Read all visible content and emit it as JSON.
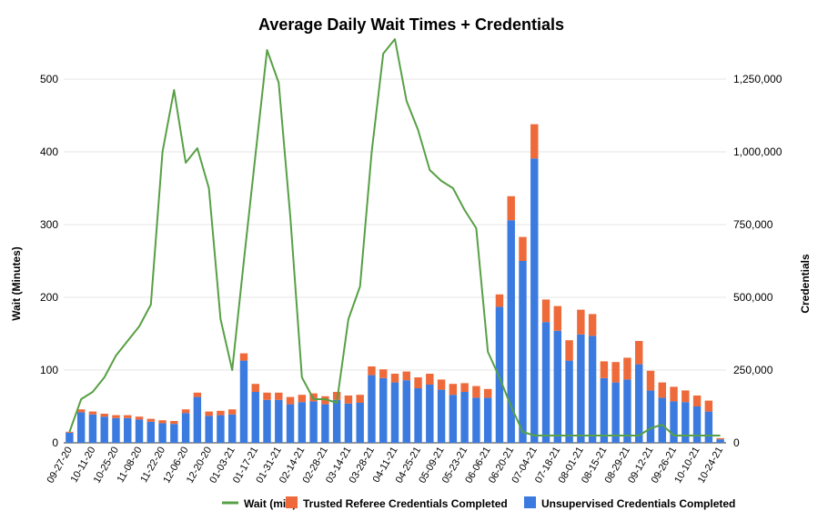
{
  "chart_data": {
    "type": "bar",
    "title": "Average Daily Wait Times + Credentials",
    "ylabel": "Wait (Minutes)",
    "y2label": "Credentials",
    "ylim": [
      0,
      500
    ],
    "y2lim": [
      0,
      1250000
    ],
    "yticks": [
      "0",
      "100",
      "200",
      "300",
      "400",
      "500"
    ],
    "y2ticks": [
      "0",
      "250,000",
      "500,000",
      "750,000",
      "1,000,000",
      "1,250,000"
    ],
    "legend_position": "bottom",
    "colors": {
      "wait": "#57a045",
      "trusted": "#ef6a3a",
      "unsupervised": "#3b7be0"
    },
    "x_tick_labels": [
      "09-27-20",
      "10-11-20",
      "10-25-20",
      "11-08-20",
      "11-22-20",
      "12-06-20",
      "12-20-20",
      "01-03-21",
      "01-17-21",
      "01-31-21",
      "02-14-21",
      "02-28-21",
      "03-14-21",
      "03-28-21",
      "04-11-21",
      "04-25-21",
      "05-09-21",
      "05-23-21",
      "06-06-21",
      "06-20-21",
      "07-04-21",
      "07-18-21",
      "08-01-21",
      "08-15-21",
      "08-29-21",
      "09-12-21",
      "09-26-21",
      "10-10-21",
      "10-24-21"
    ],
    "series": [
      {
        "name": "Unsupervised Credentials Completed",
        "type": "bar",
        "axis": "right",
        "values": [
          35000,
          105000,
          97500,
          90000,
          85000,
          85000,
          80000,
          72500,
          67500,
          65000,
          102500,
          157500,
          92500,
          95000,
          97500,
          282500,
          175000,
          147500,
          147500,
          132500,
          140000,
          142500,
          132500,
          147500,
          135000,
          137500,
          232500,
          222500,
          207500,
          215000,
          187500,
          200000,
          182500,
          165000,
          175000,
          155000,
          155000,
          467500,
          765000,
          625000,
          977500,
          415000,
          385000,
          282500,
          372500,
          367500,
          222500,
          207500,
          217500,
          270000,
          180000,
          155000,
          142500,
          140000,
          125000,
          107500,
          12000
        ]
      },
      {
        "name": "Trusted Referee Credentials Completed",
        "type": "bar",
        "axis": "right",
        "stacked_on": "Unsupervised Credentials Completed",
        "values": [
          3000,
          10000,
          10000,
          10000,
          10000,
          10000,
          10000,
          10000,
          10000,
          10000,
          12500,
          15000,
          15000,
          15000,
          17500,
          25000,
          27500,
          25000,
          25000,
          25000,
          25000,
          27500,
          27500,
          27500,
          27500,
          27500,
          30000,
          30000,
          30000,
          30000,
          37500,
          37500,
          35000,
          37500,
          30000,
          40000,
          30000,
          42500,
          82500,
          82500,
          117500,
          77500,
          85000,
          70000,
          85000,
          75000,
          57500,
          70000,
          75000,
          80000,
          67500,
          52500,
          50000,
          40000,
          37500,
          37500,
          4000
        ]
      },
      {
        "name": "Wait (min)",
        "type": "line",
        "axis": "left",
        "values": [
          15,
          60,
          70,
          90,
          120,
          140,
          160,
          190,
          400,
          485,
          385,
          405,
          350,
          170,
          100,
          250,
          395,
          540,
          495,
          310,
          90,
          60,
          60,
          55,
          170,
          215,
          400,
          535,
          555,
          470,
          430,
          375,
          360,
          350,
          320,
          295,
          125,
          90,
          50,
          15,
          10,
          10,
          10,
          10,
          10,
          10,
          10,
          10,
          10,
          10,
          20,
          25,
          10,
          10,
          10,
          10,
          10
        ]
      }
    ]
  },
  "legend": {
    "wait": "Wait (min)",
    "trusted": "Trusted Referee Credentials Completed",
    "unsupervised": "Unsupervised Credentials Completed"
  }
}
